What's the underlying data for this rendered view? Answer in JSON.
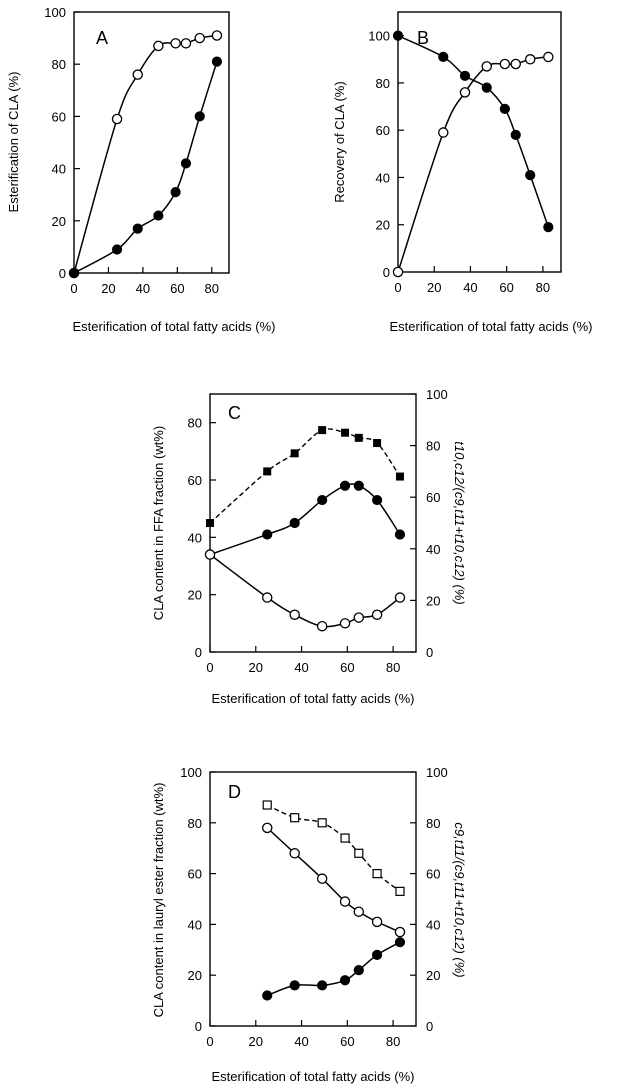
{
  "chart_data": [
    {
      "panel": "A",
      "type": "scatter",
      "xlabel": "Esterification of total fatty acids (%)",
      "ylabel": "Esterification of CLA (%)",
      "xlim": [
        0,
        90
      ],
      "ylim": [
        0,
        100
      ],
      "xticks": [
        0,
        20,
        40,
        60,
        80
      ],
      "yticks": [
        0,
        20,
        40,
        60,
        80,
        100
      ],
      "series": [
        {
          "marker": "open-circle",
          "fit": "solid",
          "x": [
            0,
            25,
            37,
            49,
            59,
            65,
            73,
            83
          ],
          "y": [
            0,
            59,
            76,
            87,
            88,
            88,
            90,
            91
          ]
        },
        {
          "marker": "filled-circle",
          "fit": "solid",
          "x": [
            0,
            25,
            37,
            49,
            59,
            65,
            73,
            83
          ],
          "y": [
            0,
            9,
            17,
            22,
            31,
            42,
            60,
            81
          ]
        }
      ]
    },
    {
      "panel": "B",
      "type": "scatter",
      "xlabel": "Esterification of total fatty acids (%)",
      "ylabel": "Recovery of CLA (%)",
      "xlim": [
        0,
        90
      ],
      "ylim": [
        0,
        110
      ],
      "xticks": [
        0,
        20,
        40,
        60,
        80
      ],
      "yticks": [
        0,
        20,
        40,
        60,
        80,
        100
      ],
      "series": [
        {
          "marker": "open-circle",
          "fit": "solid",
          "x": [
            0,
            25,
            37,
            49,
            59,
            65,
            73,
            83
          ],
          "y": [
            0,
            59,
            76,
            87,
            88,
            88,
            90,
            91
          ]
        },
        {
          "marker": "filled-circle",
          "fit": "solid",
          "x": [
            0,
            25,
            37,
            49,
            59,
            65,
            73,
            83
          ],
          "y": [
            100,
            91,
            83,
            78,
            69,
            58,
            41,
            19
          ]
        }
      ]
    },
    {
      "panel": "C",
      "type": "scatter",
      "xlabel": "Esterification of total fatty acids (%)",
      "ylabel": "CLA content in FFA fraction (wt%)",
      "ylabel_right": "t10,c12/(c9,t11+t10,c12) (%)",
      "xlim": [
        0,
        90
      ],
      "ylim": [
        0,
        90
      ],
      "ylim_right": [
        0,
        100
      ],
      "xticks": [
        0,
        20,
        40,
        60,
        80
      ],
      "yticks": [
        0,
        20,
        40,
        60,
        80
      ],
      "yticks_right": [
        0,
        20,
        40,
        60,
        80,
        100
      ],
      "series": [
        {
          "marker": "filled-square",
          "fit": "dashed",
          "axis": "right",
          "x": [
            0,
            25,
            37,
            49,
            59,
            65,
            73,
            83
          ],
          "y": [
            50,
            70,
            77,
            86,
            85,
            83,
            81,
            68
          ]
        },
        {
          "marker": "filled-circle",
          "fit": "solid",
          "axis": "left",
          "x": [
            0,
            25,
            37,
            49,
            59,
            65,
            73,
            83
          ],
          "y": [
            34,
            41,
            45,
            53,
            58,
            58,
            53,
            41
          ]
        },
        {
          "marker": "open-circle",
          "fit": "solid",
          "axis": "left",
          "x": [
            0,
            25,
            37,
            49,
            59,
            65,
            73,
            83
          ],
          "y": [
            34,
            19,
            13,
            9,
            10,
            12,
            13,
            19
          ]
        }
      ]
    },
    {
      "panel": "D",
      "type": "scatter",
      "xlabel": "Esterification of total fatty acids (%)",
      "ylabel": "CLA content in lauryl ester fraction (wt%)",
      "ylabel_right": "c9,t11/(c9,t11+t10,c12) (%)",
      "xlim": [
        0,
        90
      ],
      "ylim": [
        0,
        100
      ],
      "ylim_right": [
        0,
        100
      ],
      "xticks": [
        0,
        20,
        40,
        60,
        80
      ],
      "yticks": [
        0,
        20,
        40,
        60,
        80,
        100
      ],
      "yticks_right": [
        0,
        20,
        40,
        60,
        80,
        100
      ],
      "series": [
        {
          "marker": "open-square",
          "fit": "dashed",
          "axis": "right",
          "x": [
            25,
            37,
            49,
            59,
            65,
            73,
            83
          ],
          "y": [
            87,
            82,
            80,
            74,
            68,
            60,
            53
          ]
        },
        {
          "marker": "open-circle",
          "fit": "solid",
          "axis": "left",
          "x": [
            25,
            37,
            49,
            59,
            65,
            73,
            83
          ],
          "y": [
            78,
            68,
            58,
            49,
            45,
            41,
            37
          ]
        },
        {
          "marker": "filled-circle",
          "fit": "solid",
          "axis": "left",
          "x": [
            25,
            37,
            49,
            59,
            65,
            73,
            83
          ],
          "y": [
            12,
            16,
            16,
            18,
            22,
            28,
            33
          ]
        }
      ]
    }
  ]
}
